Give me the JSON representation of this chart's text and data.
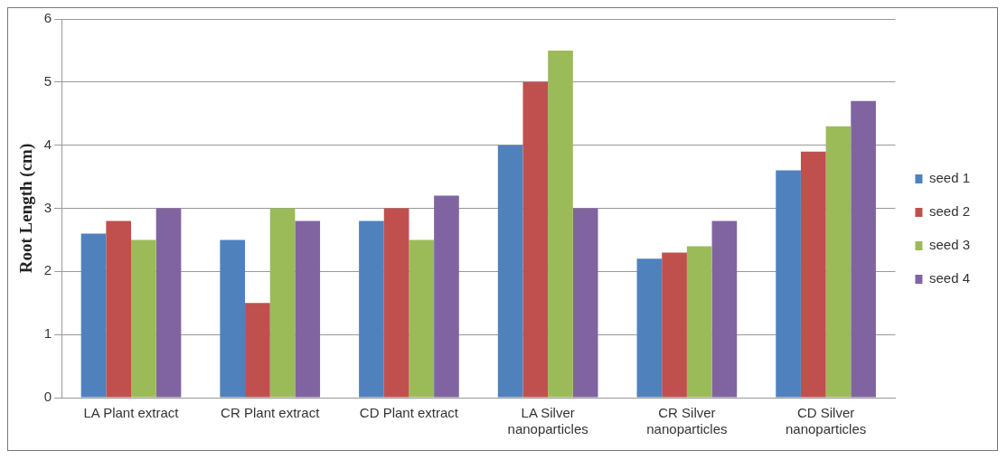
{
  "chart_data": {
    "type": "bar",
    "ylabel": "Root Length (cm)",
    "categories": [
      "LA Plant extract",
      "CR Plant extract",
      "CD Plant extract",
      "LA Silver nanoparticles",
      "CR Silver nanoparticles",
      "CD Silver nanoparticles"
    ],
    "series": [
      {
        "name": "seed 1",
        "color": "#4f81bd",
        "values": [
          2.6,
          2.5,
          2.8,
          4,
          2.2,
          3.6
        ]
      },
      {
        "name": "seed 2",
        "color": "#c0504d",
        "values": [
          2.8,
          1.5,
          3,
          5,
          2.3,
          3.9
        ]
      },
      {
        "name": "seed 3",
        "color": "#9bbb59",
        "values": [
          2.5,
          3,
          2.5,
          5.5,
          2.4,
          4.3
        ]
      },
      {
        "name": "seed 4",
        "color": "#8064a2",
        "values": [
          3,
          2.8,
          3.2,
          3,
          2.8,
          4.7
        ]
      }
    ],
    "ylim": [
      0,
      6
    ],
    "yticks": [
      0,
      1,
      2,
      3,
      4,
      5,
      6
    ],
    "grid": "y",
    "legend": "right"
  }
}
